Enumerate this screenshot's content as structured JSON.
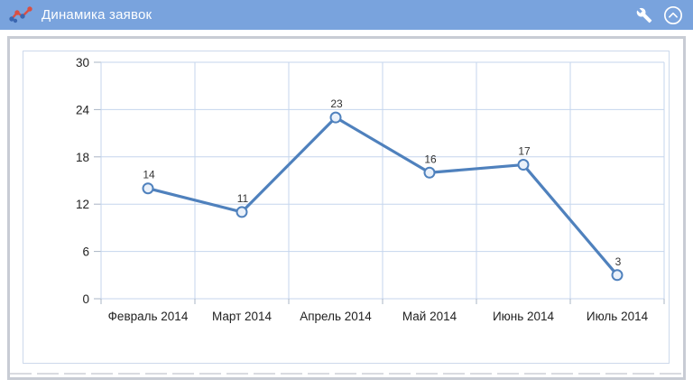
{
  "header": {
    "title": "Динамика заявок",
    "chart_icon": "trend-chart-icon",
    "settings_icon": "wrench-icon",
    "collapse_icon": "chevron-up-circle-icon"
  },
  "colors": {
    "header_bg": "#79A3DD",
    "header_text": "#FFFFFF",
    "panel_border": "#C8CCD4",
    "chart_border": "#CDD9EB",
    "grid": "#C5D6ED",
    "tick": "#A9B4C4",
    "line": "#4F81BD",
    "marker_fill": "#EAF1FA",
    "icon_red": "#D94F43",
    "icon_blue": "#3A66B0"
  },
  "chart_data": {
    "type": "line",
    "categories": [
      "Февраль 2014",
      "Март 2014",
      "Апрель 2014",
      "Май 2014",
      "Июнь 2014",
      "Июль 2014"
    ],
    "values": [
      14,
      11,
      23,
      16,
      17,
      3
    ],
    "title": "Динамика заявок",
    "xlabel": "",
    "ylabel": "",
    "ylim": [
      0,
      30
    ],
    "yticks": [
      0,
      6,
      12,
      18,
      24,
      30
    ],
    "grid": true,
    "legend": false,
    "marker": "circle",
    "point_labels": true
  }
}
